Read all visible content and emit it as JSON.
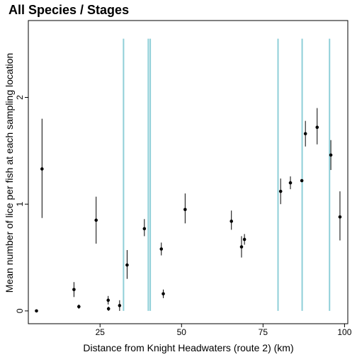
{
  "chart_data": {
    "type": "scatter",
    "title": "All Species / Stages",
    "xlabel": "Distance from Knight Headwaters (route 2) (km)",
    "ylabel": "Mean number of lice per fish at each sampling location",
    "xlim": [
      3,
      101
    ],
    "ylim": [
      -0.12,
      2.72
    ],
    "x_ticks": [
      25,
      50,
      75,
      100
    ],
    "y_ticks": [
      0,
      1,
      2
    ],
    "grid": false,
    "vertical_lines": {
      "color": "#8fcfd8",
      "x": [
        32.2,
        39.8,
        40.4,
        79.6,
        87.0,
        95.4
      ]
    },
    "points": [
      {
        "x": 5.5,
        "y": 0.0,
        "lo": 0.0,
        "hi": 0.0
      },
      {
        "x": 7.2,
        "y": 1.33,
        "lo": 0.87,
        "hi": 1.8
      },
      {
        "x": 17.0,
        "y": 0.2,
        "lo": 0.13,
        "hi": 0.27
      },
      {
        "x": 18.5,
        "y": 0.04,
        "lo": 0.02,
        "hi": 0.06
      },
      {
        "x": 23.8,
        "y": 0.85,
        "lo": 0.63,
        "hi": 1.07
      },
      {
        "x": 27.5,
        "y": 0.1,
        "lo": 0.06,
        "hi": 0.14
      },
      {
        "x": 27.6,
        "y": 0.02,
        "lo": 0.0,
        "hi": 0.04
      },
      {
        "x": 31.0,
        "y": 0.05,
        "lo": 0.0,
        "hi": 0.1
      },
      {
        "x": 33.3,
        "y": 0.43,
        "lo": 0.3,
        "hi": 0.57
      },
      {
        "x": 38.6,
        "y": 0.77,
        "lo": 0.7,
        "hi": 0.86
      },
      {
        "x": 43.8,
        "y": 0.58,
        "lo": 0.52,
        "hi": 0.64
      },
      {
        "x": 44.4,
        "y": 0.16,
        "lo": 0.12,
        "hi": 0.2
      },
      {
        "x": 51.1,
        "y": 0.95,
        "lo": 0.82,
        "hi": 1.1
      },
      {
        "x": 65.3,
        "y": 0.84,
        "lo": 0.76,
        "hi": 0.94
      },
      {
        "x": 68.4,
        "y": 0.6,
        "lo": 0.5,
        "hi": 0.7
      },
      {
        "x": 69.3,
        "y": 0.67,
        "lo": 0.62,
        "hi": 0.72
      },
      {
        "x": 80.4,
        "y": 1.12,
        "lo": 1.0,
        "hi": 1.24
      },
      {
        "x": 83.4,
        "y": 1.2,
        "lo": 1.14,
        "hi": 1.26
      },
      {
        "x": 86.9,
        "y": 1.22,
        "lo": 1.22,
        "hi": 1.22
      },
      {
        "x": 88.0,
        "y": 1.66,
        "lo": 1.54,
        "hi": 1.78
      },
      {
        "x": 91.6,
        "y": 1.72,
        "lo": 1.56,
        "hi": 1.9
      },
      {
        "x": 95.8,
        "y": 1.46,
        "lo": 1.32,
        "hi": 1.6
      },
      {
        "x": 98.6,
        "y": 0.88,
        "lo": 0.66,
        "hi": 1.12
      }
    ]
  }
}
